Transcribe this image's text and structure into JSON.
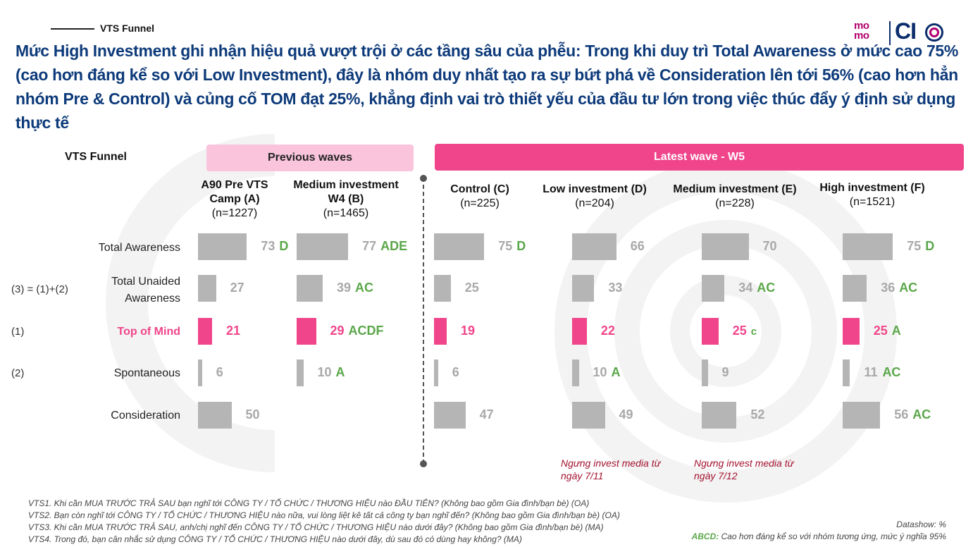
{
  "section_label": "VTS Funnel",
  "headline": "Mức High Investment ghi nhận hiệu quả vượt trội ở các tầng sâu của phễu: Trong khi duy trì Total Awareness ở mức cao 75% (cao hơn đáng kể so với Low Investment), đây là nhóm duy nhất tạo ra sự bứt phá về Consideration lên tới 56% (cao hơn hẳn nhóm Pre & Control) và củng cố TOM đạt 25%, khẳng định vai trò thiết yếu của đầu tư lớn trong việc thúc đẩy ý định sử dụng thực tế",
  "logo": {
    "momo_top": "mo",
    "momo_bottom": "mo",
    "ci": "CI"
  },
  "colors": {
    "accent": "#f0458b",
    "band_prev": "#f9c4dc",
    "headline": "#0d3a7a",
    "bar": "#b5b5b5",
    "sig": "#5aa74a",
    "note": "#a3112e"
  },
  "chart_data": {
    "type": "bar",
    "orientation": "horizontal",
    "title": "VTS Funnel",
    "unit": "%",
    "groups": [
      {
        "label": "Previous waves",
        "columns": [
          "A",
          "B"
        ]
      },
      {
        "label": "Latest wave - W5",
        "columns": [
          "C",
          "D",
          "E",
          "F"
        ]
      }
    ],
    "columns": [
      {
        "id": "A",
        "name": "A90 Pre VTS Camp (A)",
        "n": "(n=1227)"
      },
      {
        "id": "B",
        "name": "Medium investment W4 (B)",
        "n": "(n=1465)"
      },
      {
        "id": "C",
        "name": "Control (C)",
        "n": "(n=225)"
      },
      {
        "id": "D",
        "name": "Low investment (D)",
        "n": "(n=204)"
      },
      {
        "id": "E",
        "name": "Medium investment (E)",
        "n": "(n=228)"
      },
      {
        "id": "F",
        "name": "High investment (F)",
        "n": "(n=1521)"
      }
    ],
    "rows": [
      {
        "label": "Total Awareness",
        "formula": "",
        "highlight": false,
        "values": [
          73,
          77,
          75,
          66,
          70,
          75
        ],
        "sig": [
          "D",
          "ADE",
          "D",
          "",
          "",
          "D"
        ]
      },
      {
        "label": "Total Unaided Awareness",
        "formula": "(3) = (1)+(2)",
        "highlight": false,
        "values": [
          27,
          39,
          25,
          33,
          34,
          36
        ],
        "sig": [
          "",
          "AC",
          "",
          "",
          "AC",
          "AC"
        ]
      },
      {
        "label": "Top of Mind",
        "formula": "(1)",
        "highlight": true,
        "values": [
          21,
          29,
          19,
          22,
          25,
          25
        ],
        "sig": [
          "",
          "ACDF",
          "",
          "",
          "c",
          "A"
        ]
      },
      {
        "label": "Spontaneous",
        "formula": "(2)",
        "highlight": false,
        "values": [
          6,
          10,
          6,
          10,
          9,
          11
        ],
        "sig": [
          "",
          "A",
          "",
          "A",
          "",
          "AC"
        ]
      },
      {
        "label": "Consideration",
        "formula": "",
        "highlight": false,
        "values": [
          50,
          null,
          47,
          49,
          52,
          56
        ],
        "sig": [
          "",
          "",
          "",
          "",
          "",
          "AC"
        ]
      }
    ],
    "notes": [
      {
        "column": "D",
        "text": "Ngưng invest media từ ngày 7/11"
      },
      {
        "column": "E",
        "text": "Ngưng invest media từ ngày 7/12"
      }
    ]
  },
  "footnotes": [
    "VTS1. Khi cần MUA TRƯỚC TRẢ SAU bạn nghĩ tới CÔNG TY / TỔ CHỨC / THƯƠNG HIỆU nào ĐẦU TIÊN? (Không bao gồm Gia đình/bạn bè) (OA)",
    "VTS2. Bạn còn nghĩ tới CÔNG TY / TỔ CHỨC / THƯƠNG HIỆU nào nữa, vui lòng liệt kê tất cả công ty bạn nghĩ đến? (Không bao gồm Gia đình/bạn bè) (OA)",
    "VTS3. Khi cần MUA TRƯỚC TRẢ SAU, anh/chị nghĩ đến CÔNG TY / TỔ CHỨC / THƯƠNG HIỆU nào dưới đây? (Không bao gồm Gia đình/bạn bè) (MA)",
    "VTS4. Trong đó, bạn cân nhắc sử dụng CÔNG TY / TỔ CHỨC / THƯƠNG HIỆU nào dưới đây, dù sau đó có dùng hay không? (MA)"
  ],
  "datashow": "Datashow: %",
  "sig_note": {
    "key": "ABCD:",
    "text": " Cao hơn đáng kể so với nhóm tương ứng, mức ý nghĩa 95%"
  }
}
